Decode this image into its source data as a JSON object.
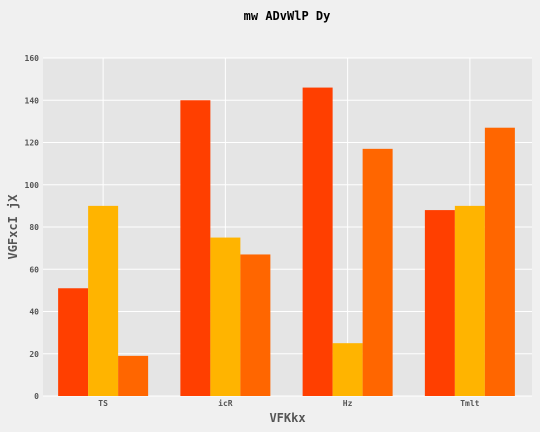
{
  "chart_data": {
    "type": "bar",
    "title": "mw ADvWlP Dy",
    "xlabel": "VFKkx",
    "ylabel": "VGFxcI jX",
    "categories": [
      "TS",
      "icR",
      "Hz",
      "Tmlt"
    ],
    "series": [
      {
        "values": [
          51,
          140,
          146,
          88
        ]
      },
      {
        "values": [
          90,
          75,
          25,
          90
        ]
      },
      {
        "values": [
          19,
          67,
          117,
          127
        ]
      }
    ],
    "ylim": [
      0,
      160
    ],
    "yticks": [
      0,
      20,
      40,
      60,
      80,
      100,
      120,
      140,
      160
    ],
    "grid": true,
    "legend": "none"
  },
  "colors": {
    "background": "#f0f0f0",
    "plot_background": "#e5e5e5",
    "grid": "#ffffff",
    "series": [
      "#ff3f00",
      "#ffb400",
      "#ff6600"
    ]
  }
}
